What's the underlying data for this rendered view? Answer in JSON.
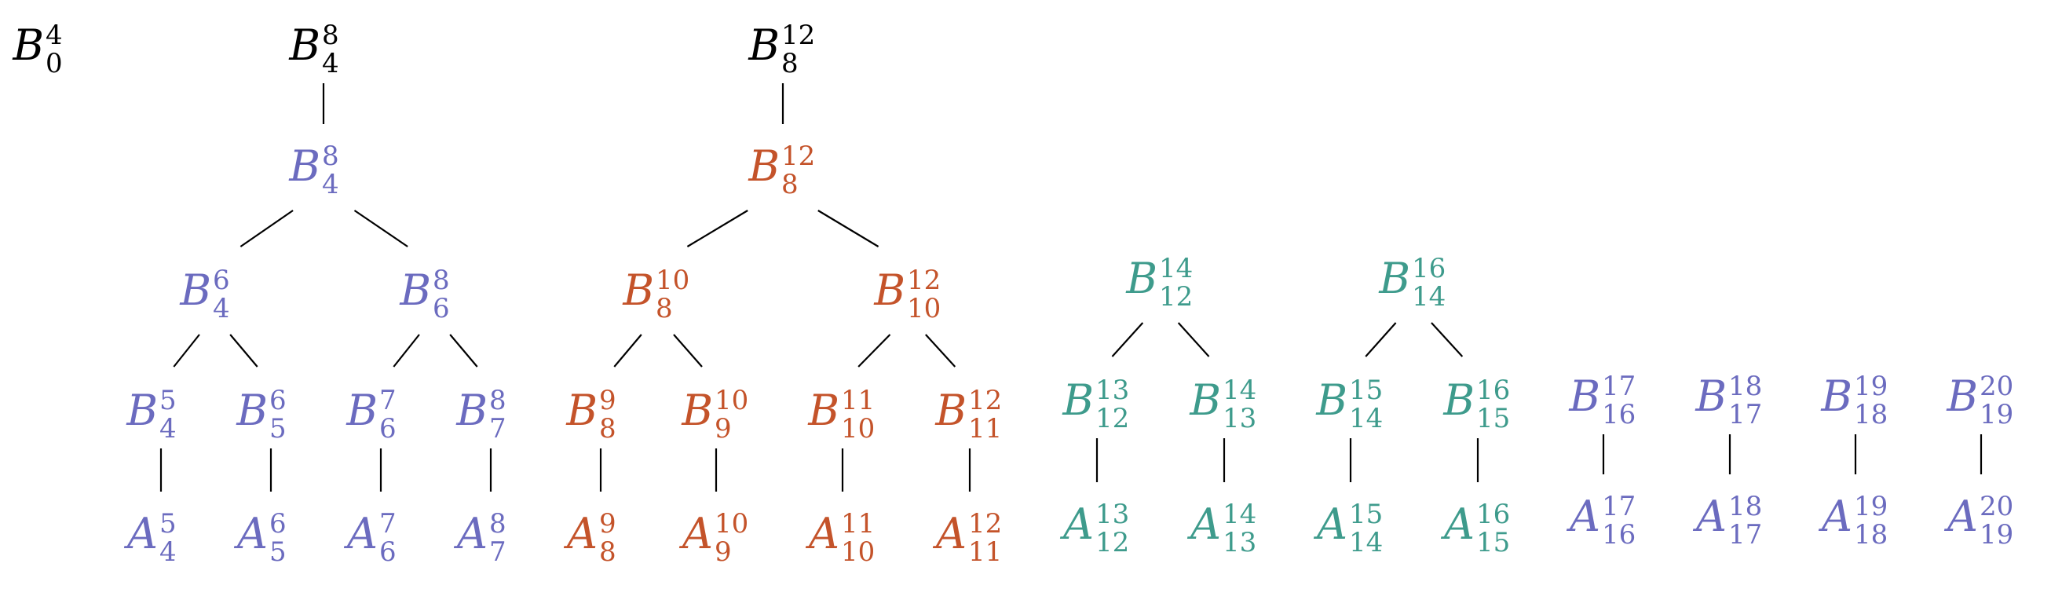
{
  "colors": {
    "black": "#000000",
    "purple": "#6b6bbf",
    "orange": "#c4532a",
    "teal": "#3e9b8c"
  },
  "nodes": [
    {
      "id": "B0_4",
      "base": "B",
      "sub": "0",
      "sup": "4",
      "color": "black"
    },
    {
      "id": "B4_8_top",
      "base": "B",
      "sub": "4",
      "sup": "8",
      "color": "black"
    },
    {
      "id": "B8_12_top",
      "base": "B",
      "sub": "8",
      "sup": "12",
      "color": "black"
    },
    {
      "id": "B4_8",
      "base": "B",
      "sub": "4",
      "sup": "8",
      "color": "purple"
    },
    {
      "id": "B4_6",
      "base": "B",
      "sub": "4",
      "sup": "6",
      "color": "purple"
    },
    {
      "id": "B6_8",
      "base": "B",
      "sub": "6",
      "sup": "8",
      "color": "purple"
    },
    {
      "id": "B4_5",
      "base": "B",
      "sub": "4",
      "sup": "5",
      "color": "purple"
    },
    {
      "id": "B5_6",
      "base": "B",
      "sub": "5",
      "sup": "6",
      "color": "purple"
    },
    {
      "id": "B6_7",
      "base": "B",
      "sub": "6",
      "sup": "7",
      "color": "purple"
    },
    {
      "id": "B7_8",
      "base": "B",
      "sub": "7",
      "sup": "8",
      "color": "purple"
    },
    {
      "id": "A4_5",
      "base": "A",
      "sub": "4",
      "sup": "5",
      "color": "purple"
    },
    {
      "id": "A5_6",
      "base": "A",
      "sub": "5",
      "sup": "6",
      "color": "purple"
    },
    {
      "id": "A6_7",
      "base": "A",
      "sub": "6",
      "sup": "7",
      "color": "purple"
    },
    {
      "id": "A7_8",
      "base": "A",
      "sub": "7",
      "sup": "8",
      "color": "purple"
    },
    {
      "id": "B8_12",
      "base": "B",
      "sub": "8",
      "sup": "12",
      "color": "orange"
    },
    {
      "id": "B8_10",
      "base": "B",
      "sub": "8",
      "sup": "10",
      "color": "orange"
    },
    {
      "id": "B10_12",
      "base": "B",
      "sub": "10",
      "sup": "12",
      "color": "orange"
    },
    {
      "id": "B8_9",
      "base": "B",
      "sub": "8",
      "sup": "9",
      "color": "orange"
    },
    {
      "id": "B9_10",
      "base": "B",
      "sub": "9",
      "sup": "10",
      "color": "orange"
    },
    {
      "id": "B10_11",
      "base": "B",
      "sub": "10",
      "sup": "11",
      "color": "orange"
    },
    {
      "id": "B11_12",
      "base": "B",
      "sub": "11",
      "sup": "12",
      "color": "orange"
    },
    {
      "id": "A8_9",
      "base": "A",
      "sub": "8",
      "sup": "9",
      "color": "orange"
    },
    {
      "id": "A9_10",
      "base": "A",
      "sub": "9",
      "sup": "10",
      "color": "orange"
    },
    {
      "id": "A10_11",
      "base": "A",
      "sub": "10",
      "sup": "11",
      "color": "orange"
    },
    {
      "id": "A11_12",
      "base": "A",
      "sub": "11",
      "sup": "12",
      "color": "orange"
    },
    {
      "id": "B12_14",
      "base": "B",
      "sub": "12",
      "sup": "14",
      "color": "teal"
    },
    {
      "id": "B14_16",
      "base": "B",
      "sub": "14",
      "sup": "16",
      "color": "teal"
    },
    {
      "id": "B12_13",
      "base": "B",
      "sub": "12",
      "sup": "13",
      "color": "teal"
    },
    {
      "id": "B13_14",
      "base": "B",
      "sub": "13",
      "sup": "14",
      "color": "teal"
    },
    {
      "id": "B14_15",
      "base": "B",
      "sub": "14",
      "sup": "15",
      "color": "teal"
    },
    {
      "id": "B15_16",
      "base": "B",
      "sub": "15",
      "sup": "16",
      "color": "teal"
    },
    {
      "id": "A12_13",
      "base": "A",
      "sub": "12",
      "sup": "13",
      "color": "teal"
    },
    {
      "id": "A13_14",
      "base": "A",
      "sub": "13",
      "sup": "14",
      "color": "teal"
    },
    {
      "id": "A14_15",
      "base": "A",
      "sub": "14",
      "sup": "15",
      "color": "teal"
    },
    {
      "id": "A15_16",
      "base": "A",
      "sub": "15",
      "sup": "16",
      "color": "teal"
    },
    {
      "id": "B16_17",
      "base": "B",
      "sub": "16",
      "sup": "17",
      "color": "purple"
    },
    {
      "id": "B17_18",
      "base": "B",
      "sub": "17",
      "sup": "18",
      "color": "purple"
    },
    {
      "id": "B18_19",
      "base": "B",
      "sub": "18",
      "sup": "19",
      "color": "purple"
    },
    {
      "id": "B19_20",
      "base": "B",
      "sub": "19",
      "sup": "20",
      "color": "purple"
    },
    {
      "id": "A16_17",
      "base": "A",
      "sub": "16",
      "sup": "17",
      "color": "purple"
    },
    {
      "id": "A17_18",
      "base": "A",
      "sub": "17",
      "sup": "18",
      "color": "purple"
    },
    {
      "id": "A18_19",
      "base": "A",
      "sub": "18",
      "sup": "19",
      "color": "purple"
    },
    {
      "id": "A19_20",
      "base": "A",
      "sub": "19",
      "sup": "20",
      "color": "purple"
    }
  ],
  "edges": [
    [
      "B4_8_top",
      "B4_8"
    ],
    [
      "B8_12_top",
      "B8_12"
    ],
    [
      "B4_8",
      "B4_6"
    ],
    [
      "B4_8",
      "B6_8"
    ],
    [
      "B4_6",
      "B4_5"
    ],
    [
      "B4_6",
      "B5_6"
    ],
    [
      "B6_8",
      "B6_7"
    ],
    [
      "B6_8",
      "B7_8"
    ],
    [
      "B4_5",
      "A4_5"
    ],
    [
      "B5_6",
      "A5_6"
    ],
    [
      "B6_7",
      "A6_7"
    ],
    [
      "B7_8",
      "A7_8"
    ],
    [
      "B8_12",
      "B8_10"
    ],
    [
      "B8_12",
      "B10_12"
    ],
    [
      "B8_10",
      "B8_9"
    ],
    [
      "B8_10",
      "B9_10"
    ],
    [
      "B10_12",
      "B10_11"
    ],
    [
      "B10_12",
      "B11_12"
    ],
    [
      "B8_9",
      "A8_9"
    ],
    [
      "B9_10",
      "A9_10"
    ],
    [
      "B10_11",
      "A10_11"
    ],
    [
      "B11_12",
      "A11_12"
    ],
    [
      "B12_14",
      "B12_13"
    ],
    [
      "B12_14",
      "B13_14"
    ],
    [
      "B14_16",
      "B14_15"
    ],
    [
      "B14_16",
      "B15_16"
    ],
    [
      "B12_13",
      "A12_13"
    ],
    [
      "B13_14",
      "A13_14"
    ],
    [
      "B14_15",
      "A14_15"
    ],
    [
      "B15_16",
      "A15_16"
    ],
    [
      "B16_17",
      "A16_17"
    ],
    [
      "B17_18",
      "A17_18"
    ],
    [
      "B18_19",
      "A18_19"
    ],
    [
      "B19_20",
      "A19_20"
    ]
  ]
}
